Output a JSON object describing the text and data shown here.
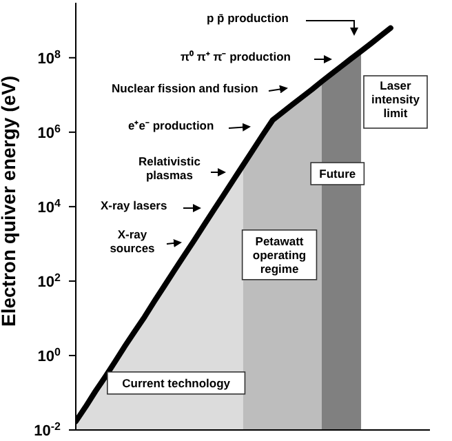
{
  "chart_data": {
    "type": "line",
    "ylabel": "Electron quiver energy (eV)",
    "categories": [
      null,
      null,
      null,
      null,
      null,
      null,
      null,
      null,
      null,
      null,
      null,
      null,
      null,
      null,
      null,
      null,
      null,
      null,
      null,
      null,
      null,
      null,
      null,
      null,
      null,
      null,
      null,
      null,
      null,
      null,
      null,
      null,
      null,
      null,
      null,
      null,
      null
    ],
    "series": [
      {
        "type": "area",
        "name": "Current technology",
        "color": "#dcdcdc",
        "values": [
          0.017,
          0.042,
          0.11,
          0.27,
          0.69,
          1.8,
          4.5,
          11,
          29,
          74,
          190,
          480,
          1200,
          3100,
          7900,
          20000,
          51000,
          130000,
          null,
          null,
          null,
          null,
          null,
          null,
          null,
          null,
          null,
          null,
          null,
          null,
          null,
          null,
          null,
          null,
          null,
          null,
          null
        ]
      },
      {
        "type": "area",
        "name": "Petawatt operating regime",
        "color": "#bdbdbd",
        "values": [
          null,
          null,
          null,
          null,
          null,
          null,
          null,
          null,
          null,
          null,
          null,
          null,
          null,
          null,
          null,
          null,
          null,
          130000,
          330000,
          840000,
          2100000,
          3400000,
          5500000,
          8800000,
          14000000,
          23000000,
          null,
          null,
          null,
          null,
          null,
          null,
          null,
          null,
          null,
          null,
          null
        ]
      },
      {
        "type": "area",
        "name": "Future",
        "color": "#808080",
        "values": [
          null,
          null,
          null,
          null,
          null,
          null,
          null,
          null,
          null,
          null,
          null,
          null,
          null,
          null,
          null,
          null,
          null,
          null,
          null,
          null,
          null,
          null,
          null,
          null,
          null,
          23000000,
          37000000,
          59000000,
          95000000,
          150000000,
          null,
          null,
          null,
          null,
          null,
          null,
          null
        ]
      },
      {
        "color": "#000000",
        "values": [
          0.017,
          0.042,
          0.11,
          0.27,
          0.69,
          1.8,
          4.5,
          11,
          29,
          74,
          190,
          480,
          1200,
          3100,
          7900,
          20000,
          51000,
          130000,
          330000,
          840000,
          2100000,
          3400000,
          5500000,
          8800000,
          14000000,
          23000000,
          37000000,
          59000000,
          95000000,
          150000000,
          240000000,
          390000000,
          630000000,
          null,
          null,
          null,
          null
        ]
      }
    ],
    "ylim": [
      0.01,
      3000000000
    ],
    "yticks": [
      {
        "value": 0.01,
        "label": "10$^{-2}$"
      },
      {
        "value": 1,
        "label": "10$^{0}$"
      },
      {
        "value": 100,
        "label": "10$^{2}$"
      },
      {
        "value": 10000,
        "label": "10$^{4}$"
      },
      {
        "value": 1000000,
        "label": "10$^{6}$"
      },
      {
        "value": 100000000,
        "label": "10$^{8}$"
      }
    ],
    "log": "y",
    "tick_labels": "y",
    "annotations": [
      "p p̄  production",
      "π⁰ π⁺ π⁻  production",
      "Nuclear fission and fusion",
      "e⁺e⁻ production",
      "Relativistic plasmas",
      "X-ray lasers",
      "X-ray sources",
      "Laser intensity limit"
    ]
  }
}
